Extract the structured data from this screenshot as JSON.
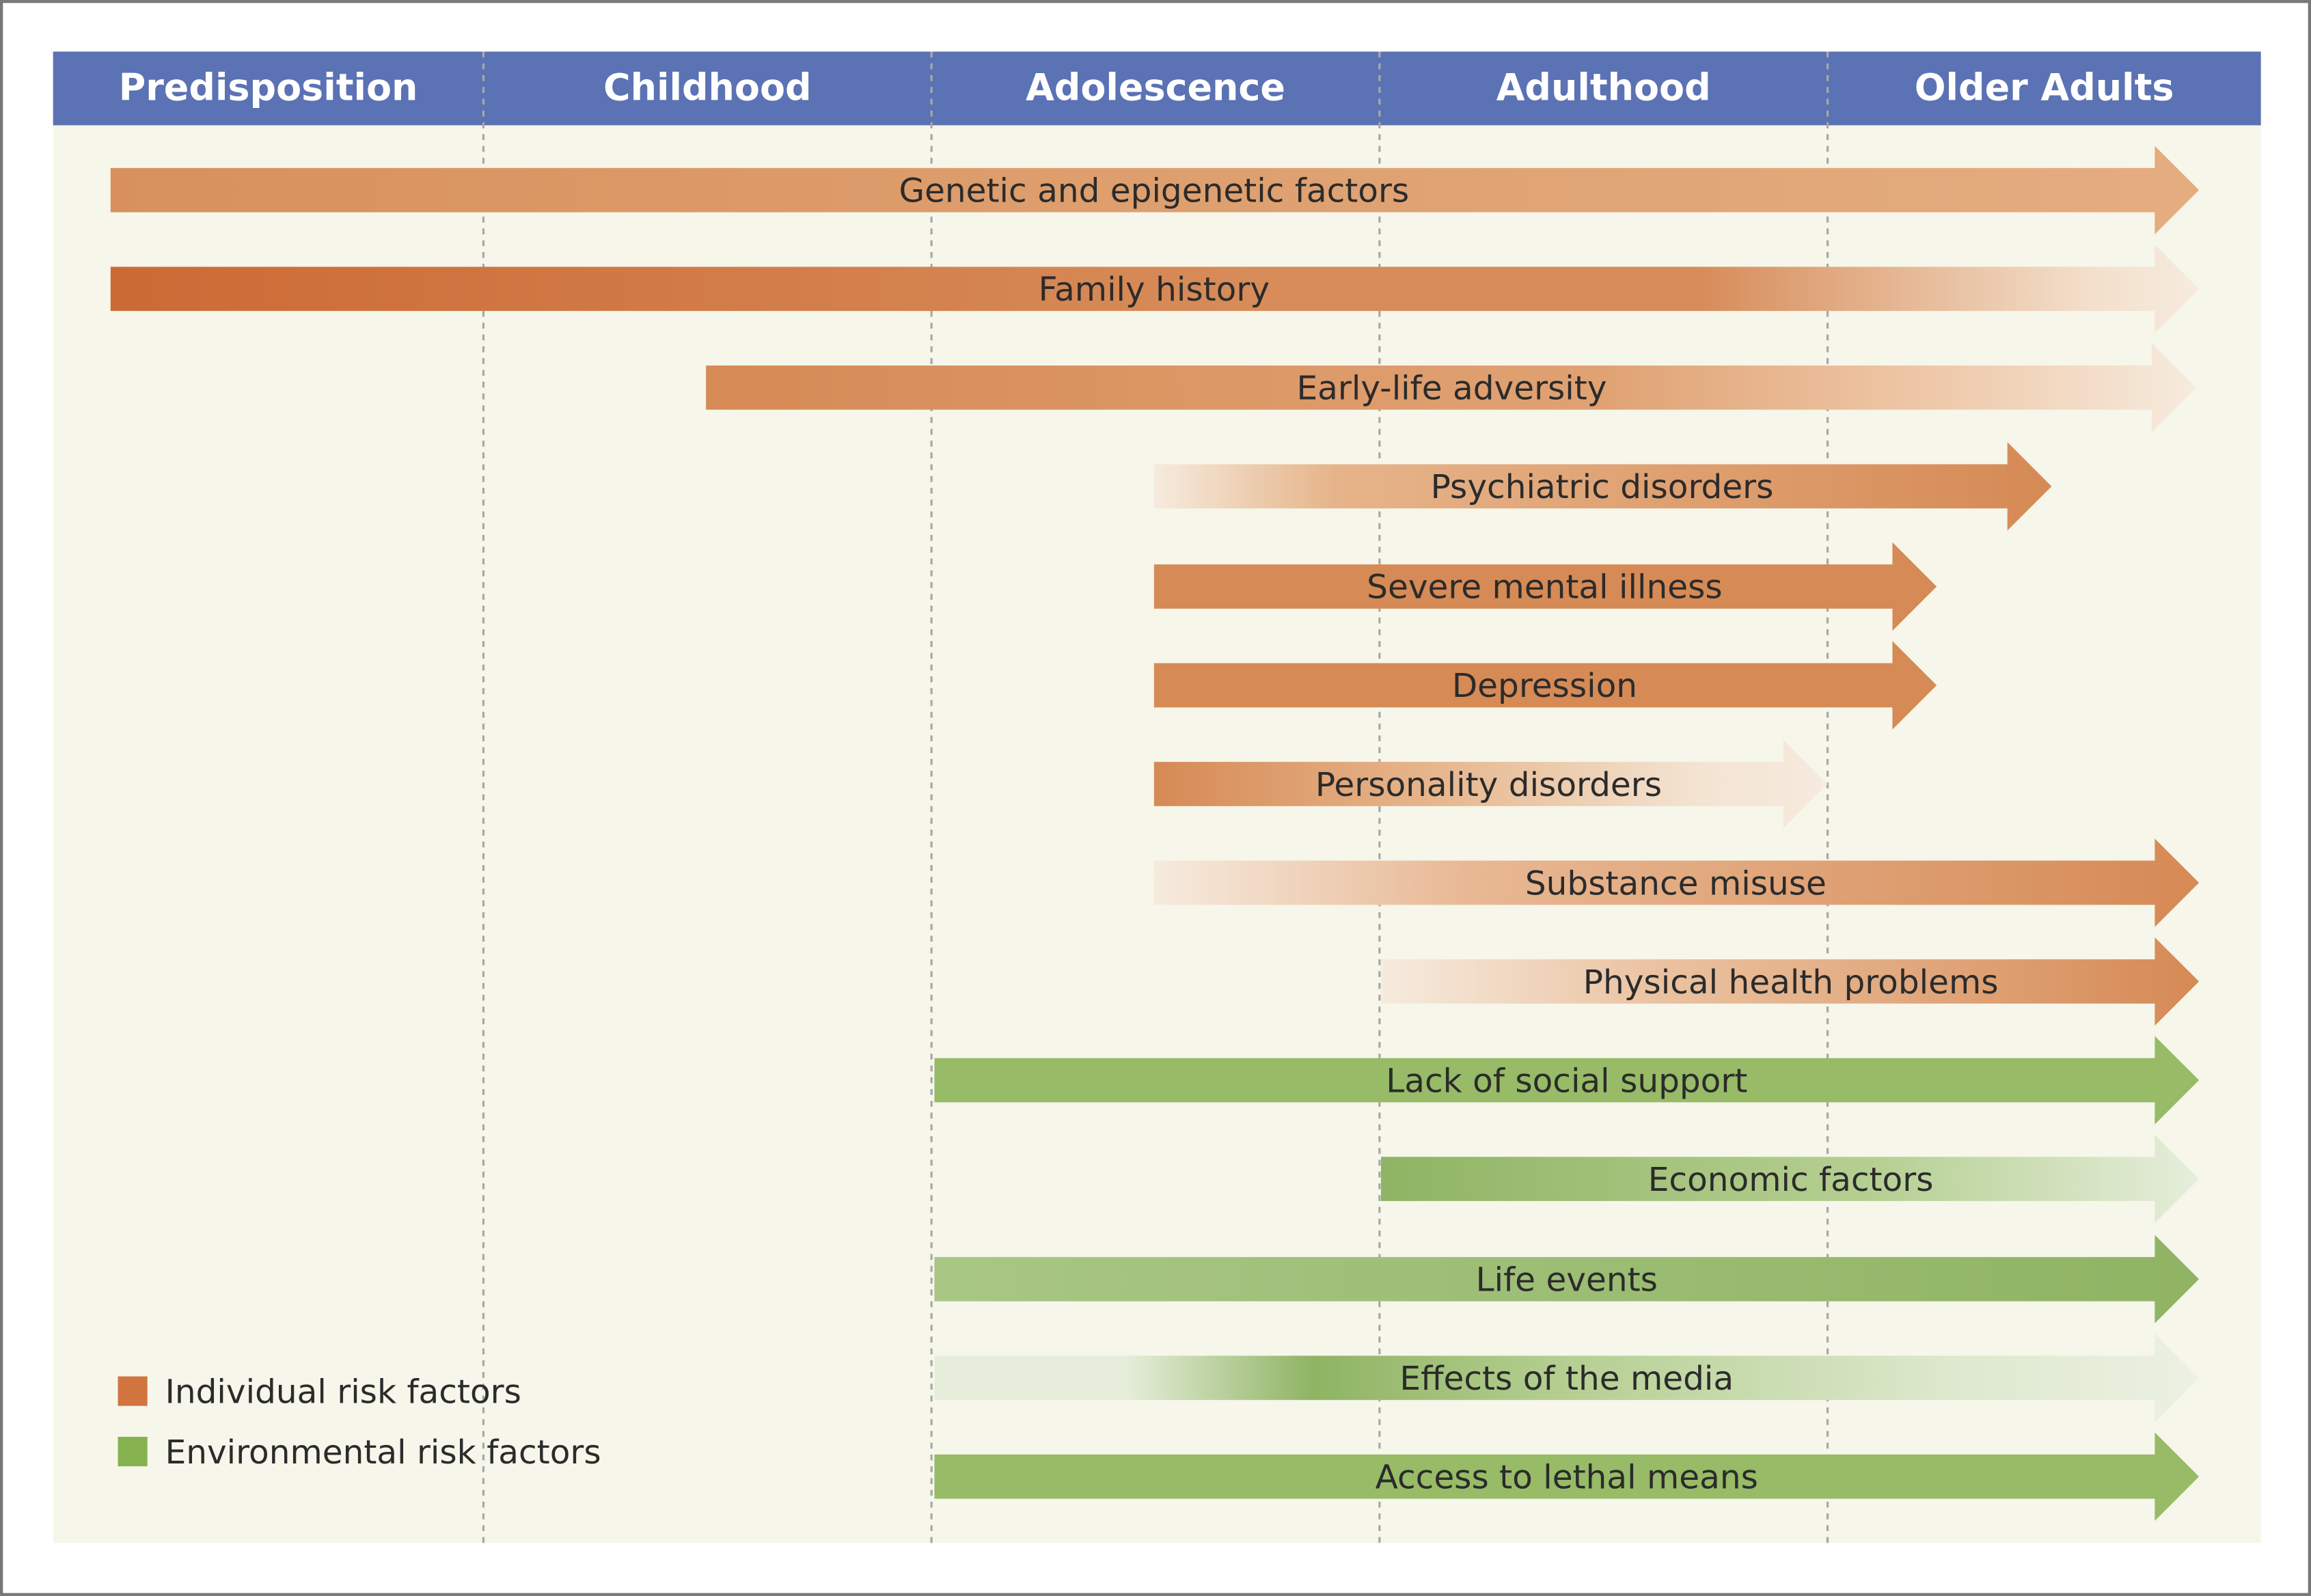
{
  "header": {
    "stages": [
      "Predisposition",
      "Childhood",
      "Adolescence",
      "Adulthood",
      "Older Adults"
    ]
  },
  "arrows": [
    {
      "label": "Genetic and epigenetic factors"
    },
    {
      "label": "Family history"
    },
    {
      "label": "Early-life adversity"
    },
    {
      "label": "Psychiatric disorders"
    },
    {
      "label": "Severe mental illness"
    },
    {
      "label": "Depression"
    },
    {
      "label": "Personality disorders"
    },
    {
      "label": "Substance misuse"
    },
    {
      "label": "Physical health problems"
    },
    {
      "label": "Lack of social support"
    },
    {
      "label": "Economic factors"
    },
    {
      "label": "Life events"
    },
    {
      "label": "Effects of the media"
    },
    {
      "label": "Access to lethal means"
    }
  ],
  "legend": [
    {
      "label": "Individual risk factors"
    },
    {
      "label": "Environmental risk factors"
    }
  ]
}
